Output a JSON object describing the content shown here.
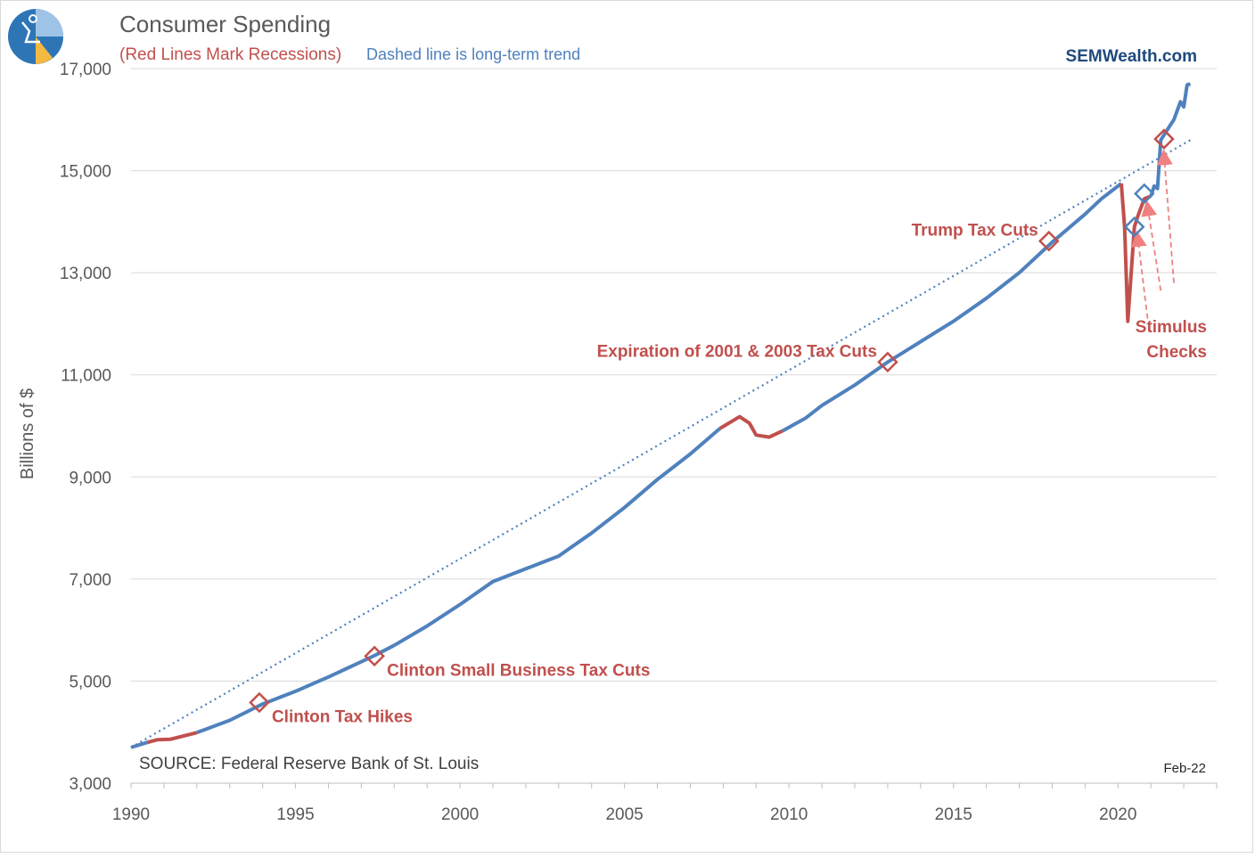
{
  "header": {
    "title": "Consumer Spending",
    "subtitle_recession": "(Red Lines Mark Recessions)",
    "subtitle_trend": "Dashed line is long-term trend",
    "brand": "SEMWealth.com"
  },
  "footer": {
    "source": "SOURCE:  Federal Reserve Bank of St. Louis",
    "date": "Feb-22"
  },
  "colors": {
    "series": "#4f81bd",
    "recession": "#c0504d",
    "trend": "#4f81bd",
    "arrow": "#f08080",
    "title": "#595959",
    "subtitle_red": "#c0504d",
    "subtitle_blue": "#4f81bd",
    "brand": "#1f497d",
    "grid": "#d9d9d9"
  },
  "chart_data": {
    "type": "line",
    "ylabel": "Billions of $",
    "xlabel": "",
    "xlim": [
      1990,
      2023
    ],
    "ylim": [
      3000,
      17000
    ],
    "x_ticks": [
      1990,
      1995,
      2000,
      2005,
      2010,
      2015,
      2020
    ],
    "y_ticks": [
      3000,
      5000,
      7000,
      9000,
      11000,
      13000,
      15000,
      17000
    ],
    "y_tick_labels": [
      "3,000",
      "5,000",
      "7,000",
      "9,000",
      "11,000",
      "13,000",
      "15,000",
      "17,000"
    ],
    "series": [
      {
        "name": "",
        "points": [
          [
            1990.0,
            3700
          ],
          [
            1990.5,
            3800
          ],
          [
            1990.8,
            3850
          ],
          [
            1991.2,
            3860
          ],
          [
            1992.0,
            3990
          ],
          [
            1993.0,
            4230
          ],
          [
            1994.0,
            4550
          ],
          [
            1995.0,
            4800
          ],
          [
            1996.0,
            5080
          ],
          [
            1997.0,
            5380
          ],
          [
            1997.4,
            5500
          ],
          [
            1998.0,
            5700
          ],
          [
            1999.0,
            6080
          ],
          [
            2000.0,
            6500
          ],
          [
            2001.0,
            6950
          ],
          [
            2002.0,
            7200
          ],
          [
            2003.0,
            7450
          ],
          [
            2004.0,
            7900
          ],
          [
            2005.0,
            8400
          ],
          [
            2006.0,
            8950
          ],
          [
            2007.0,
            9450
          ],
          [
            2007.9,
            9950
          ],
          [
            2008.5,
            10180
          ],
          [
            2008.8,
            10050
          ],
          [
            2009.0,
            9820
          ],
          [
            2009.4,
            9780
          ],
          [
            2009.8,
            9900
          ],
          [
            2010.5,
            10150
          ],
          [
            2011.0,
            10400
          ],
          [
            2012.0,
            10800
          ],
          [
            2013.0,
            11250
          ],
          [
            2014.0,
            11650
          ],
          [
            2015.0,
            12050
          ],
          [
            2016.0,
            12500
          ],
          [
            2017.0,
            13000
          ],
          [
            2018.0,
            13600
          ],
          [
            2019.0,
            14150
          ],
          [
            2019.5,
            14450
          ],
          [
            2020.1,
            14750
          ],
          [
            2020.2,
            13900
          ],
          [
            2020.3,
            12050
          ],
          [
            2020.5,
            13900
          ],
          [
            2020.6,
            14100
          ],
          [
            2020.8,
            14450
          ],
          [
            2021.0,
            14500
          ],
          [
            2021.1,
            14700
          ],
          [
            2021.2,
            14650
          ],
          [
            2021.3,
            15600
          ],
          [
            2021.5,
            15800
          ],
          [
            2021.7,
            16000
          ],
          [
            2021.9,
            16350
          ],
          [
            2022.0,
            16250
          ],
          [
            2022.1,
            16680
          ],
          [
            2022.2,
            16700
          ]
        ]
      }
    ],
    "recessions": [
      [
        1990.5,
        1991.2
      ],
      [
        2001.2,
        2001.9
      ],
      [
        2007.9,
        2009.5
      ],
      [
        2020.1,
        2020.8
      ]
    ],
    "trend": {
      "start": [
        1990.0,
        3700
      ],
      "end": [
        2022.2,
        15600
      ]
    },
    "annotations": [
      {
        "text": "Clinton Tax Hikes",
        "x": 1993.9,
        "y": 4580,
        "marker_color": "#c0504d",
        "align": "right-of"
      },
      {
        "text": "Clinton Small Business Tax Cuts",
        "x": 1997.4,
        "y": 5490,
        "marker_color": "#c0504d",
        "align": "right-of"
      },
      {
        "text": "Expiration of 2001 & 2003 Tax Cuts",
        "x": 2013.0,
        "y": 11250,
        "marker_color": "#c0504d",
        "align": "left-above"
      },
      {
        "text": "Trump Tax Cuts",
        "x": 2017.9,
        "y": 13620,
        "marker_color": "#c0504d",
        "align": "left-above"
      },
      {
        "text": "",
        "x": 2020.5,
        "y": 13900,
        "marker_color": "#4f81bd",
        "align": "none"
      },
      {
        "text": "",
        "x": 2020.8,
        "y": 14550,
        "marker_color": "#4f81bd",
        "align": "none"
      },
      {
        "text": "",
        "x": 2021.4,
        "y": 15620,
        "marker_color": "#c0504d",
        "align": "none"
      }
    ],
    "stimulus_label": [
      "Stimulus",
      "Checks"
    ]
  }
}
